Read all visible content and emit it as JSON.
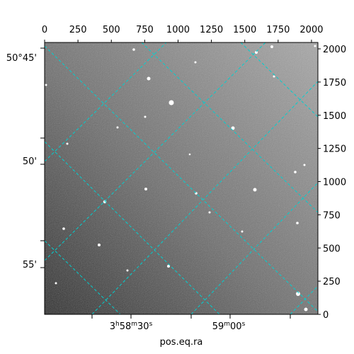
{
  "chart_data": {
    "type": "image",
    "xlabel": "pos.eq.ra",
    "xlim": [
      0,
      2048
    ],
    "xticks": [
      0,
      250,
      500,
      750,
      1000,
      1250,
      1500,
      1750,
      2000
    ],
    "ylim": [
      0,
      2048
    ],
    "yticks": [
      0,
      250,
      500,
      750,
      1000,
      1250,
      1500,
      1750,
      2000
    ],
    "dec_ticks": [
      "50°45'",
      "50'",
      "55'"
    ],
    "ra_ticks": [
      [
        "3",
        "h",
        "58",
        "m",
        "30",
        "s"
      ],
      [
        "59",
        "m",
        "00",
        "s"
      ]
    ],
    "grid_color": "#00d0d0"
  }
}
